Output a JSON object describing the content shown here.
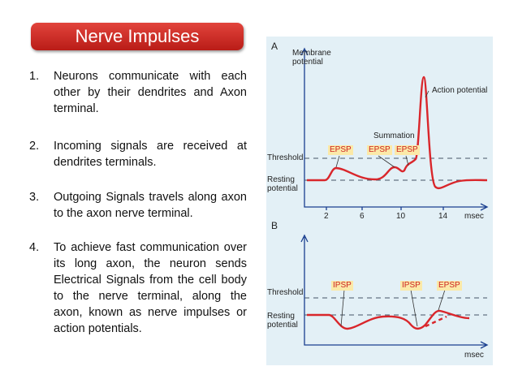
{
  "header": {
    "title": "Nerve Impulses"
  },
  "list": [
    {
      "number": "1.",
      "text": "Neurons communicate with each other by their dendrites and Axon terminal."
    },
    {
      "number": "2.",
      "text": "Incoming signals are received at dendrites terminals."
    },
    {
      "number": "3.",
      "text": "Outgoing Signals travels along axon to the axon nerve terminal."
    },
    {
      "number": "4.",
      "text": "To achieve fast communication over its long axon, the neuron sends Electrical Signals from the cell body to the nerve terminal, along the axon, known as nerve impulses or action potentials."
    }
  ],
  "figure": {
    "panel_a": {
      "letter": "A",
      "y_label": "Membrane potential",
      "action": "Action potential",
      "summation": "Summation",
      "epsp": [
        "EPSP",
        "EPSP",
        "EPSP"
      ],
      "threshold": "Threshold",
      "resting": "Resting potential",
      "ticks": [
        "2",
        "6",
        "10",
        "14"
      ],
      "x_label": "msec"
    },
    "panel_b": {
      "letter": "B",
      "threshold": "Threshold",
      "resting": "Resting potential",
      "markers": [
        "IPSP",
        "IPSP",
        "EPSP"
      ],
      "x_label": "msec"
    }
  }
}
